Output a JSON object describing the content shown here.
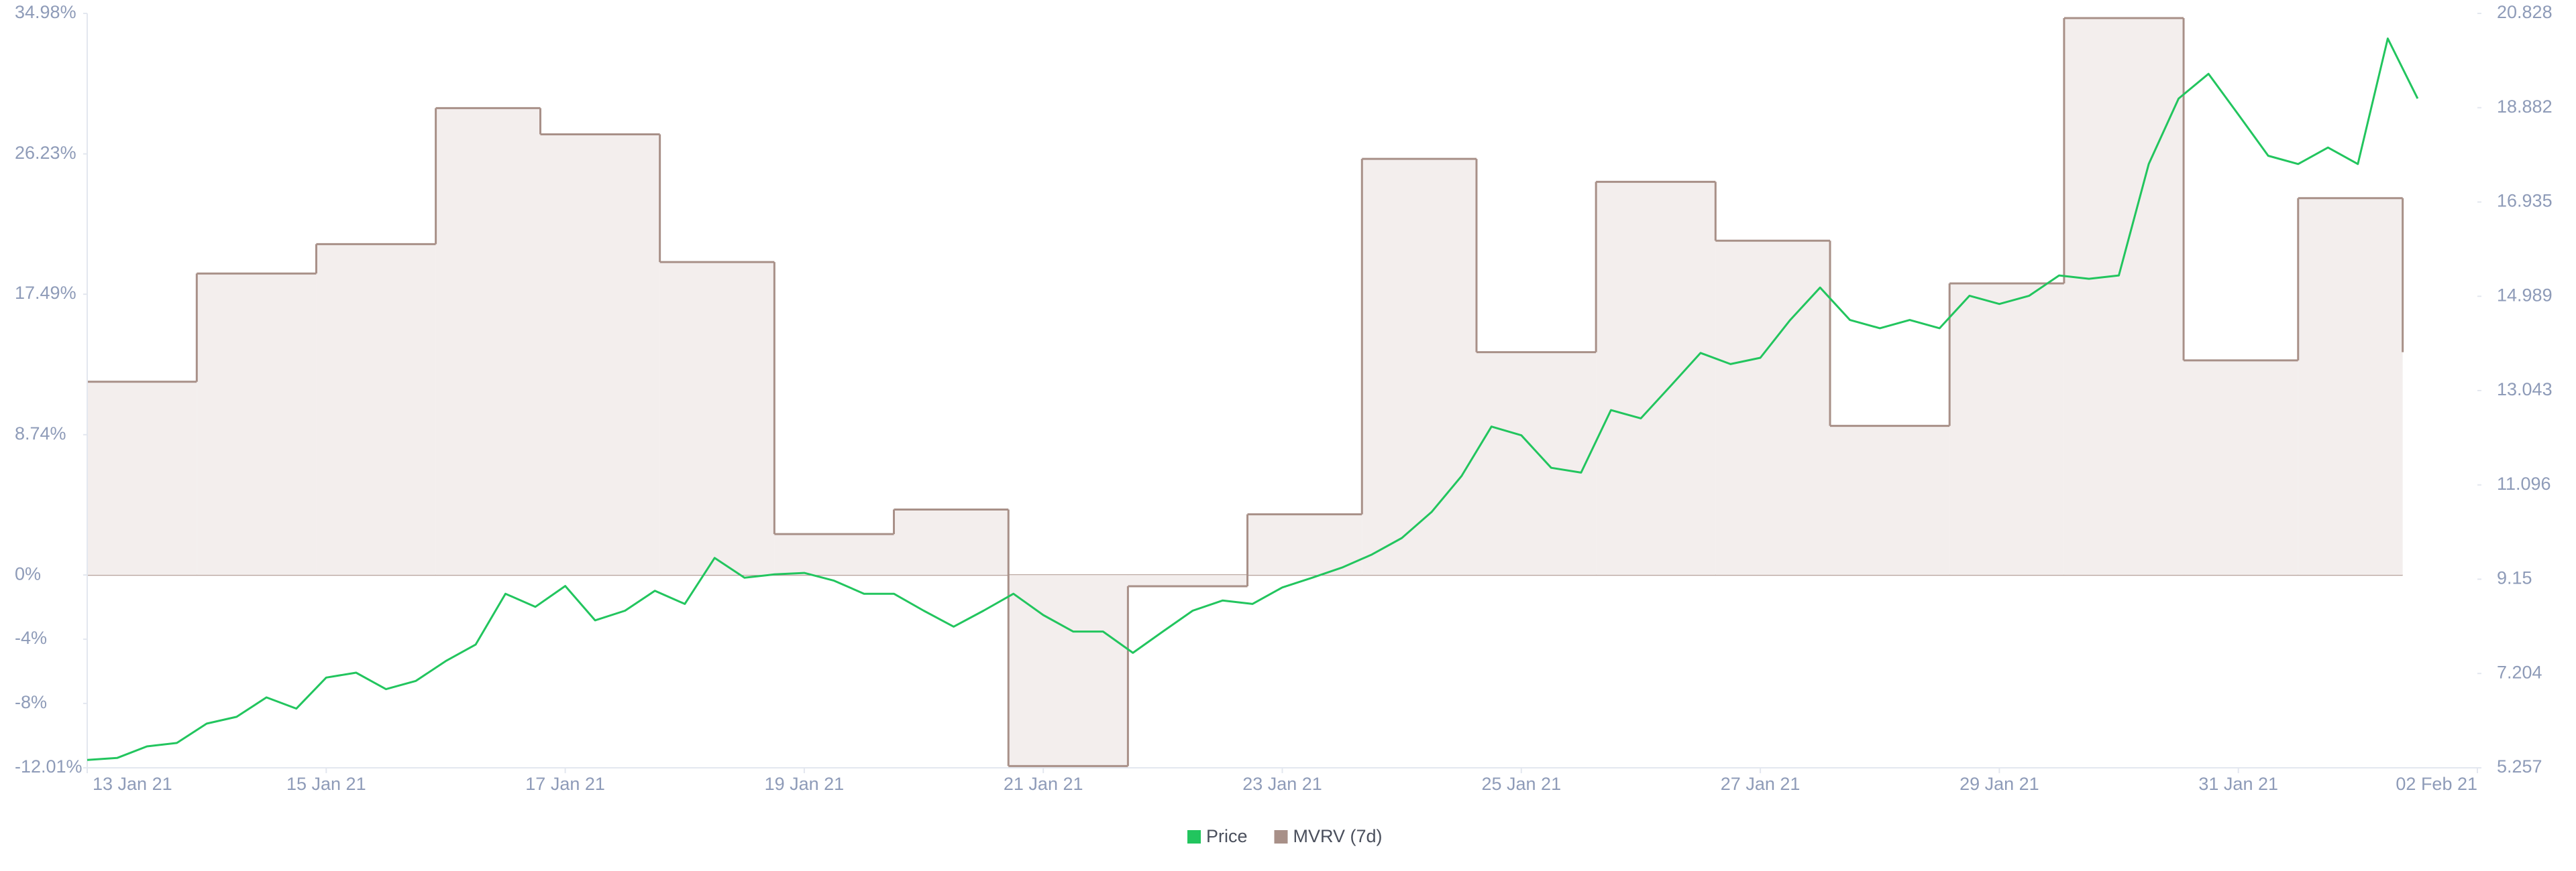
{
  "chart_data": {
    "type": "line",
    "xlim": [
      "2021-01-13T00:00",
      "2021-02-02T00:00"
    ],
    "xticks": [
      {
        "value": "2021-01-13T00:00",
        "label": "13 Jan 21"
      },
      {
        "value": "2021-01-15T00:00",
        "label": "15 Jan 21"
      },
      {
        "value": "2021-01-17T00:00",
        "label": "17 Jan 21"
      },
      {
        "value": "2021-01-19T00:00",
        "label": "19 Jan 21"
      },
      {
        "value": "2021-01-21T00:00",
        "label": "21 Jan 21"
      },
      {
        "value": "2021-01-23T00:00",
        "label": "23 Jan 21"
      },
      {
        "value": "2021-01-25T00:00",
        "label": "25 Jan 21"
      },
      {
        "value": "2021-01-27T00:00",
        "label": "27 Jan 21"
      },
      {
        "value": "2021-01-29T00:00",
        "label": "29 Jan 21"
      },
      {
        "value": "2021-01-31T00:00",
        "label": "31 Jan 21"
      },
      {
        "value": "2021-02-02T00:00",
        "label": "02 Feb 21"
      }
    ],
    "ylim": [
      -12.01,
      34.98
    ],
    "yticks": [
      {
        "value": -12.01,
        "label": "-12.01%"
      },
      {
        "value": -8,
        "label": "-8%"
      },
      {
        "value": -4,
        "label": "-4%"
      },
      {
        "value": 0,
        "label": "0%"
      },
      {
        "value": 8.74,
        "label": "8.74%"
      },
      {
        "value": 17.49,
        "label": "17.49%"
      },
      {
        "value": 26.23,
        "label": "26.23%"
      },
      {
        "value": 34.98,
        "label": "34.98%"
      }
    ],
    "y2lim": [
      5.257,
      20.828
    ],
    "y2ticks": [
      5.257,
      7.204,
      9.15,
      11.096,
      13.043,
      14.989,
      16.935,
      18.882,
      20.828
    ],
    "legend": "bottom",
    "series": [
      {
        "name": "Price",
        "color": "#22c55e",
        "axis": "y2",
        "x": [
          "2021-01-13T00:00",
          "2021-01-13T06:00",
          "2021-01-13T12:00",
          "2021-01-13T18:00",
          "2021-01-14T00:00",
          "2021-01-14T06:00",
          "2021-01-14T12:00",
          "2021-01-14T18:00",
          "2021-01-15T00:00",
          "2021-01-15T06:00",
          "2021-01-15T12:00",
          "2021-01-15T18:00",
          "2021-01-16T00:00",
          "2021-01-16T06:00",
          "2021-01-16T12:00",
          "2021-01-16T18:00",
          "2021-01-17T00:00",
          "2021-01-17T06:00",
          "2021-01-17T12:00",
          "2021-01-17T18:00",
          "2021-01-18T00:00",
          "2021-01-18T06:00",
          "2021-01-18T12:00",
          "2021-01-18T18:00",
          "2021-01-19T00:00",
          "2021-01-19T06:00",
          "2021-01-19T12:00",
          "2021-01-19T18:00",
          "2021-01-20T00:00",
          "2021-01-20T06:00",
          "2021-01-20T12:00",
          "2021-01-20T18:00",
          "2021-01-21T00:00",
          "2021-01-21T06:00",
          "2021-01-21T12:00",
          "2021-01-21T18:00",
          "2021-01-22T00:00",
          "2021-01-22T06:00",
          "2021-01-22T12:00",
          "2021-01-22T18:00",
          "2021-01-23T00:00",
          "2021-01-23T06:00",
          "2021-01-23T12:00",
          "2021-01-23T18:00",
          "2021-01-24T00:00",
          "2021-01-24T06:00",
          "2021-01-24T12:00",
          "2021-01-24T18:00",
          "2021-01-25T00:00",
          "2021-01-25T06:00",
          "2021-01-25T12:00",
          "2021-01-25T18:00",
          "2021-01-26T00:00",
          "2021-01-26T06:00",
          "2021-01-26T12:00",
          "2021-01-26T18:00",
          "2021-01-27T00:00",
          "2021-01-27T06:00",
          "2021-01-27T12:00",
          "2021-01-27T18:00",
          "2021-01-28T00:00",
          "2021-01-28T06:00",
          "2021-01-28T12:00",
          "2021-01-28T18:00",
          "2021-01-29T00:00",
          "2021-01-29T06:00",
          "2021-01-29T12:00",
          "2021-01-29T18:00",
          "2021-01-30T00:00",
          "2021-01-30T06:00",
          "2021-01-30T12:00",
          "2021-01-30T18:00",
          "2021-01-31T00:00",
          "2021-01-31T06:00",
          "2021-01-31T12:00",
          "2021-01-31T18:00",
          "2021-02-01T00:00",
          "2021-02-01T06:00",
          "2021-02-01T12:00"
        ],
        "values": [
          5.42,
          5.46,
          5.7,
          5.77,
          6.17,
          6.31,
          6.71,
          6.48,
          7.12,
          7.22,
          6.88,
          7.05,
          7.46,
          7.8,
          8.85,
          8.58,
          9.01,
          8.3,
          8.5,
          8.91,
          8.64,
          9.59,
          9.18,
          9.25,
          9.28,
          9.12,
          8.85,
          8.85,
          8.5,
          8.17,
          8.5,
          8.85,
          8.41,
          8.07,
          8.07,
          7.63,
          8.07,
          8.5,
          8.71,
          8.64,
          8.98,
          9.18,
          9.39,
          9.66,
          10.0,
          10.54,
          11.28,
          12.3,
          12.12,
          11.45,
          11.35,
          12.64,
          12.47,
          13.14,
          13.82,
          13.59,
          13.72,
          14.5,
          15.17,
          14.5,
          14.33,
          14.5,
          14.33,
          15.0,
          14.83,
          15.0,
          15.42,
          15.35,
          15.42,
          17.72,
          19.07,
          19.58,
          18.74,
          17.89,
          17.72,
          18.06,
          17.72,
          20.31,
          19.07
        ]
      },
      {
        "name": "MVRV (7d)",
        "color": "#a89088",
        "fill": "#f3eeed",
        "x": [
          "2021-01-13T00:00",
          "2021-01-13T22:00",
          "2021-01-14T22:00",
          "2021-01-15T22:00",
          "2021-01-16T19:00",
          "2021-01-17T19:00",
          "2021-01-18T18:00",
          "2021-01-19T18:00",
          "2021-01-20T17:00",
          "2021-01-21T17:00",
          "2021-01-22T17:00",
          "2021-01-23T16:00",
          "2021-01-24T15:00",
          "2021-01-25T15:00",
          "2021-01-26T15:00",
          "2021-01-27T14:00",
          "2021-01-28T14:00",
          "2021-01-29T13:00",
          "2021-01-30T13:00",
          "2021-01-31T12:00",
          "2021-02-01T09:00"
        ],
        "values": [
          12.04,
          18.78,
          20.61,
          29.08,
          27.45,
          19.49,
          2.55,
          4.08,
          -11.9,
          -0.7,
          3.78,
          25.92,
          13.88,
          24.49,
          20.82,
          9.29,
          18.16,
          34.69,
          13.37,
          23.47,
          13.88
        ]
      }
    ]
  }
}
